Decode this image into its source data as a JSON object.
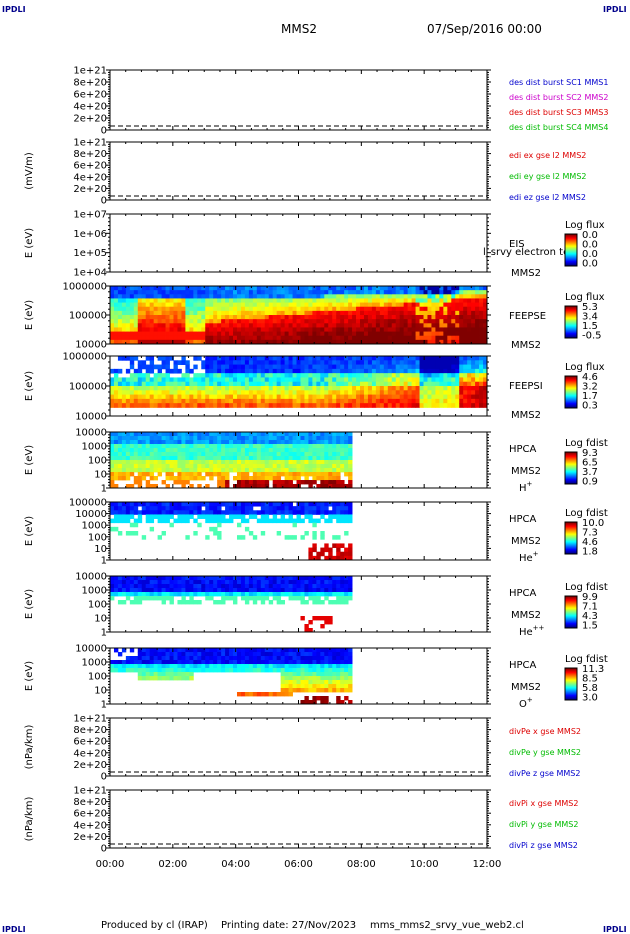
{
  "header": {
    "corner_label": "IPDLI",
    "spacecraft": "MMS2",
    "date": "07/Sep/2016 00:00"
  },
  "footer": {
    "produced_by": "Produced by cl (IRAP)",
    "printing_date": "Printing date: 27/Nov/2023",
    "script_name": "mms_mms2_srvy_vue_web2.cl"
  },
  "colors": {
    "mms1": "#0000cc",
    "mms2": "#cc00cc",
    "mms3": "#dd0000",
    "mms4": "#00bb00",
    "x": "#dd0000",
    "y": "#00bb00",
    "z": "#0000cc"
  },
  "chart_data": [
    {
      "type": "line",
      "id": "des-dist",
      "ylabel": "",
      "yticks": [
        "1e+21",
        "8e+20",
        "6e+20",
        "4e+20",
        "2e+20",
        "0"
      ],
      "ylim": [
        0,
        1e+21
      ],
      "series": [
        {
          "name": "des dist burst SC1 MMS1",
          "color": "#0000cc"
        },
        {
          "name": "des dist burst SC2 MMS2",
          "color": "#cc00cc"
        },
        {
          "name": "des dist burst SC3 MMS3",
          "color": "#dd0000"
        },
        {
          "name": "des dist burst SC4 MMS4",
          "color": "#00bb00"
        }
      ]
    },
    {
      "type": "line",
      "id": "edi",
      "ylabel": "(mV/m)",
      "yticks": [
        "1e+21",
        "8e+20",
        "6e+20",
        "4e+20",
        "2e+20",
        "0"
      ],
      "ylim": [
        0,
        1e+21
      ],
      "series": [
        {
          "name": "edi ex gse l2 MMS2",
          "color": "#dd0000"
        },
        {
          "name": "edi ey gse l2 MMS2",
          "color": "#00bb00"
        },
        {
          "name": "edi ez gse l2 MMS2",
          "color": "#0000cc"
        }
      ]
    },
    {
      "type": "heatmap",
      "id": "eis",
      "ylabel": "E (eV)",
      "yticks": [
        "1e+07",
        "1e+06",
        "1e+05",
        "1e+04"
      ],
      "labels": [
        "EIS",
        "MMS2"
      ],
      "note": "l_srvy electron to",
      "colorbar_title": "Log flux",
      "colorbar_ticks": [
        "0.0",
        "0.0",
        "0.0",
        "0.0"
      ]
    },
    {
      "type": "heatmap",
      "id": "feepse",
      "ylabel": "E (eV)",
      "yticks": [
        "1000000",
        "100000",
        "10000"
      ],
      "labels": [
        "FEEPSE",
        "MMS2"
      ],
      "colorbar_title": "Log flux",
      "colorbar_ticks": [
        "5.3",
        "3.4",
        "1.5",
        "-0.5"
      ]
    },
    {
      "type": "heatmap",
      "id": "feepsi",
      "ylabel": "E (eV)",
      "yticks": [
        "1000000",
        "100000",
        "10000"
      ],
      "labels": [
        "FEEPSI",
        "MMS2"
      ],
      "colorbar_title": "Log flux",
      "colorbar_ticks": [
        "4.6",
        "3.2",
        "1.7",
        "0.3"
      ]
    },
    {
      "type": "heatmap",
      "id": "hpca-h",
      "ylabel": "E (eV)",
      "yticks": [
        "10000",
        "1000",
        "100",
        "10",
        "1"
      ],
      "labels": [
        "HPCA",
        "MMS2"
      ],
      "species": "H",
      "species_sup": "+",
      "colorbar_title": "Log fdist",
      "colorbar_ticks": [
        "9.3",
        "6.5",
        "3.7",
        "0.9"
      ]
    },
    {
      "type": "heatmap",
      "id": "hpca-he",
      "ylabel": "E (eV)",
      "yticks": [
        "100000",
        "10000",
        "1000",
        "100",
        "10",
        "1"
      ],
      "labels": [
        "HPCA",
        "MMS2"
      ],
      "species": "He",
      "species_sup": "+",
      "colorbar_title": "Log fdist",
      "colorbar_ticks": [
        "10.0",
        "7.3",
        "4.6",
        "1.8"
      ]
    },
    {
      "type": "heatmap",
      "id": "hpca-he2",
      "ylabel": "E (eV)",
      "yticks": [
        "10000",
        "1000",
        "100",
        "10",
        "1"
      ],
      "labels": [
        "HPCA",
        "MMS2"
      ],
      "species": "He",
      "species_sup": "++",
      "colorbar_title": "Log fdist",
      "colorbar_ticks": [
        "9.9",
        "7.1",
        "4.3",
        "1.5"
      ]
    },
    {
      "type": "heatmap",
      "id": "hpca-o",
      "ylabel": "E (eV)",
      "yticks": [
        "10000",
        "1000",
        "100",
        "10",
        "1"
      ],
      "labels": [
        "HPCA",
        "MMS2"
      ],
      "species": "O",
      "species_sup": "+",
      "colorbar_title": "Log fdist",
      "colorbar_ticks": [
        "11.3",
        "8.5",
        "5.8",
        "3.0"
      ]
    },
    {
      "type": "line",
      "id": "divpe",
      "ylabel": "(nPa/km)",
      "yticks": [
        "1e+21",
        "8e+20",
        "6e+20",
        "4e+20",
        "2e+20",
        "0"
      ],
      "ylim": [
        0,
        1e+21
      ],
      "series": [
        {
          "name": "divPe x gse MMS2",
          "color": "#dd0000"
        },
        {
          "name": "divPe y gse MMS2",
          "color": "#00bb00"
        },
        {
          "name": "divPe z gse MMS2",
          "color": "#0000cc"
        }
      ]
    },
    {
      "type": "line",
      "id": "divpi",
      "ylabel": "(nPa/km)",
      "yticks": [
        "1e+21",
        "8e+20",
        "6e+20",
        "4e+20",
        "2e+20",
        "0"
      ],
      "ylim": [
        0,
        1e+21
      ],
      "series": [
        {
          "name": "divPi x gse MMS2",
          "color": "#dd0000"
        },
        {
          "name": "divPi y gse MMS2",
          "color": "#00bb00"
        },
        {
          "name": "divPi z gse MMS2",
          "color": "#0000cc"
        }
      ]
    }
  ],
  "x_axis": {
    "ticks": [
      "00:00",
      "02:00",
      "04:00",
      "06:00",
      "08:00",
      "10:00",
      "12:00"
    ],
    "xlim_hours": [
      0,
      12
    ],
    "hpca_data_end_hours": 7.6
  }
}
